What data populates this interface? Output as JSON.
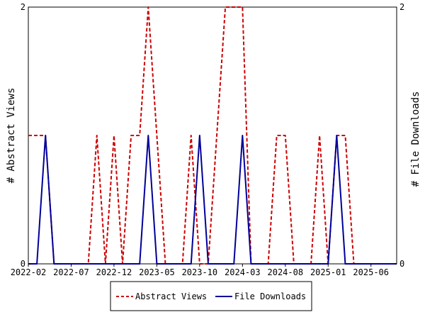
{
  "chart_data": {
    "type": "line",
    "title": "",
    "xlabel": "",
    "ylabel_left": "# Abstract Views",
    "ylabel_right": "# File Downloads",
    "ylim": [
      0,
      2
    ],
    "y_ticks": [
      "0",
      "2"
    ],
    "x_range": [
      "2022-02",
      "2025-09"
    ],
    "x_tick_labels": [
      "2022-02",
      "2022-07",
      "2022-12",
      "2023-05",
      "2023-10",
      "2024-03",
      "2024-08",
      "2025-01",
      "2025-06"
    ],
    "legend_position": "bottom-center",
    "grid": false,
    "series": [
      {
        "name": "Abstract Views",
        "color": "#cc0000",
        "style": "dashed",
        "x": [
          "2022-02",
          "2022-03",
          "2022-04",
          "2022-05",
          "2022-06",
          "2022-07",
          "2022-08",
          "2022-09",
          "2022-10",
          "2022-11",
          "2022-12",
          "2023-01",
          "2023-02",
          "2023-03",
          "2023-04",
          "2023-05",
          "2023-06",
          "2023-07",
          "2023-08",
          "2023-09",
          "2023-10",
          "2023-11",
          "2023-12",
          "2024-01",
          "2024-02",
          "2024-03",
          "2024-04",
          "2024-05",
          "2024-06",
          "2024-07",
          "2024-08",
          "2024-09",
          "2024-10",
          "2024-11",
          "2024-12",
          "2025-01",
          "2025-02",
          "2025-03",
          "2025-04",
          "2025-05",
          "2025-06",
          "2025-07",
          "2025-08",
          "2025-09"
        ],
        "values": [
          1,
          1,
          1,
          0,
          0,
          0,
          0,
          0,
          1,
          0,
          1,
          0,
          1,
          1,
          2,
          1,
          0,
          0,
          0,
          1,
          0,
          0,
          1,
          2,
          2,
          2,
          0,
          0,
          0,
          1,
          1,
          0,
          0,
          0,
          1,
          0,
          1,
          1,
          0,
          0,
          0,
          0,
          0,
          0
        ]
      },
      {
        "name": "File Downloads",
        "color": "#000099",
        "style": "solid",
        "x": [
          "2022-02",
          "2022-03",
          "2022-04",
          "2022-05",
          "2022-06",
          "2022-07",
          "2022-08",
          "2022-09",
          "2022-10",
          "2022-11",
          "2022-12",
          "2023-01",
          "2023-02",
          "2023-03",
          "2023-04",
          "2023-05",
          "2023-06",
          "2023-07",
          "2023-08",
          "2023-09",
          "2023-10",
          "2023-11",
          "2023-12",
          "2024-01",
          "2024-02",
          "2024-03",
          "2024-04",
          "2024-05",
          "2024-06",
          "2024-07",
          "2024-08",
          "2024-09",
          "2024-10",
          "2024-11",
          "2024-12",
          "2025-01",
          "2025-02",
          "2025-03",
          "2025-04",
          "2025-05",
          "2025-06",
          "2025-07",
          "2025-08",
          "2025-09"
        ],
        "values": [
          0,
          0,
          1,
          0,
          0,
          0,
          0,
          0,
          0,
          0,
          0,
          0,
          0,
          0,
          1,
          0,
          0,
          0,
          0,
          0,
          1,
          0,
          0,
          0,
          0,
          1,
          0,
          0,
          0,
          0,
          0,
          0,
          0,
          0,
          0,
          0,
          1,
          0,
          0,
          0,
          0,
          0,
          0,
          0
        ]
      }
    ]
  }
}
